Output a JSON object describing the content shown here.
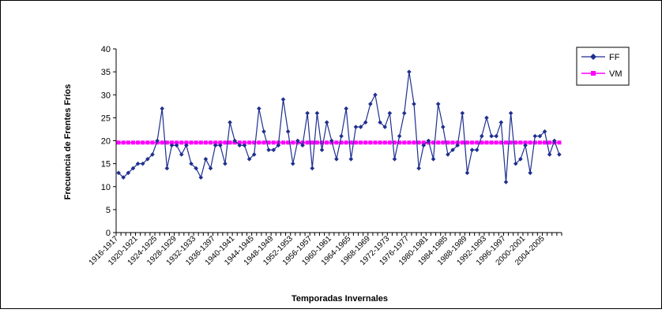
{
  "chart_data": {
    "type": "line",
    "title": "",
    "xlabel": "Temporadas Invernales",
    "ylabel": "Frecuencia de Frentes Fríos",
    "ylim": [
      0,
      40
    ],
    "yticks": [
      0,
      5,
      10,
      15,
      20,
      25,
      30,
      35,
      40
    ],
    "grid": false,
    "legend_position": "top-right",
    "x": [
      "1916-1917",
      "1917-1918",
      "1918-1919",
      "1919-1920",
      "1920-1921",
      "1921-1922",
      "1922-1923",
      "1923-1924",
      "1924-1925",
      "1925-1926",
      "1926-1927",
      "1927-1928",
      "1928-1929",
      "1929-1930",
      "1930-1931",
      "1931-1932",
      "1932-1933",
      "1933-1934",
      "1934-1935",
      "1935-1936",
      "1936-1397",
      "1937-1938",
      "1938-1939",
      "1939-1940",
      "1940-1941",
      "1941-1942",
      "1942-1943",
      "1943-1944",
      "1944-1945",
      "1945-1946",
      "1946-1947",
      "1947-1948",
      "1948-1949",
      "1949-1950",
      "1950-1951",
      "1951-1952",
      "1952-1953",
      "1953-1954",
      "1954-1955",
      "1955-1956",
      "1956-1957",
      "1957-1958",
      "1958-1959",
      "1959-1960",
      "1960-1961",
      "1961-1962",
      "1962-1963",
      "1963-1964",
      "1964-1965",
      "1965-1966",
      "1966-1967",
      "1967-1968",
      "1968-1969",
      "1969-1970",
      "1970-1971",
      "1971-1972",
      "1972-1973",
      "1973-1974",
      "1974-1975",
      "1975-1976",
      "1976-1977",
      "1977-1978",
      "1978-1979",
      "1979-1980",
      "1980-1981",
      "1981-1982",
      "1982-1983",
      "1983-1984",
      "1984-1985",
      "1985-1986",
      "1986-1987",
      "1987-1988",
      "1988-1989",
      "1989-1990",
      "1990-1991",
      "1991-1992",
      "1992-1993",
      "1993-1994",
      "1994-1995",
      "1995-1996",
      "1996-1997",
      "1997-1998",
      "1998-1999",
      "1999-2000",
      "2000-2001",
      "2001-2002",
      "2002-2003",
      "2003-2004",
      "2004-2005",
      "2005-2006",
      "2006-2007",
      "2007-2008"
    ],
    "x_tick_labels": [
      "1916-1917",
      "1920-1921",
      "1924-1925",
      "1928-1929",
      "1932-1933",
      "1936-1397",
      "1940-1941",
      "1944-1945",
      "1948-1949",
      "1952-1953",
      "1956-1957",
      "1960-1961",
      "1964-1965",
      "1968-1969",
      "1972-1973",
      "1976-1977",
      "1980-1981",
      "1984-1985",
      "1988-1989",
      "1992-1993",
      "1996-1997",
      "2000-2001",
      "2004-2005"
    ],
    "series": [
      {
        "name": "FF",
        "color": "#1f2f8f",
        "marker": "diamond",
        "values": [
          13,
          12,
          13,
          14,
          15,
          15,
          16,
          17,
          20,
          27,
          14,
          19,
          19,
          17,
          19,
          15,
          14,
          12,
          16,
          14,
          19,
          19,
          15,
          24,
          20,
          19,
          19,
          16,
          17,
          27,
          22,
          18,
          18,
          19,
          29,
          22,
          15,
          20,
          19,
          26,
          14,
          26,
          18,
          24,
          20,
          16,
          21,
          27,
          16,
          23,
          23,
          24,
          28,
          30,
          24,
          23,
          26,
          16,
          21,
          26,
          35,
          28,
          14,
          19,
          20,
          16,
          28,
          23,
          17,
          18,
          19,
          26,
          13,
          18,
          18,
          21,
          25,
          21,
          21,
          24,
          11,
          26,
          15,
          16,
          19,
          13,
          21,
          21,
          22,
          17,
          20,
          17
        ]
      },
      {
        "name": "VM",
        "color": "#ff00ff",
        "marker": "square",
        "constant": 19.6
      }
    ]
  }
}
